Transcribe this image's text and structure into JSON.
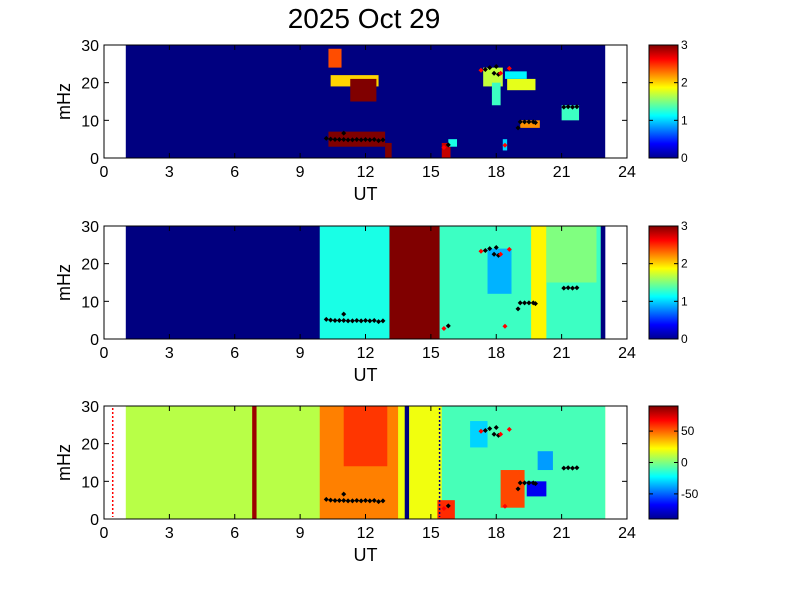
{
  "chart_data": {
    "title": "2025 Oct 29",
    "type": "heatmap",
    "panels": [
      {
        "id": "top",
        "xlabel": "UT",
        "ylabel": "mHz",
        "xlim": [
          0,
          24
        ],
        "ylim": [
          0,
          30
        ],
        "xticks": [
          0,
          3,
          6,
          9,
          12,
          15,
          18,
          21,
          24
        ],
        "yticks": [
          0,
          10,
          20,
          30
        ],
        "colorbar": {
          "range": [
            0,
            3
          ],
          "ticks": [
            0,
            1,
            2,
            3
          ]
        },
        "background_value": 0,
        "data_extent_hours": [
          1,
          23
        ],
        "patches": [
          {
            "x0": 10.3,
            "x1": 10.9,
            "y0": 24,
            "y1": 29,
            "v": 2.4
          },
          {
            "x0": 10.4,
            "x1": 12.6,
            "y0": 19,
            "y1": 22,
            "v": 2.0
          },
          {
            "x0": 11.3,
            "x1": 12.5,
            "y0": 15,
            "y1": 21,
            "v": 3.0
          },
          {
            "x0": 10.3,
            "x1": 12.9,
            "y0": 3,
            "y1": 7,
            "v": 3.0
          },
          {
            "x0": 12.9,
            "x1": 13.2,
            "y0": 0,
            "y1": 4,
            "v": 3.0
          },
          {
            "x0": 15.5,
            "x1": 15.9,
            "y0": 0,
            "y1": 4,
            "v": 2.8
          },
          {
            "x0": 15.8,
            "x1": 16.2,
            "y0": 3,
            "y1": 5,
            "v": 1.2
          },
          {
            "x0": 17.4,
            "x1": 18.3,
            "y0": 19,
            "y1": 24,
            "v": 1.7
          },
          {
            "x0": 17.8,
            "x1": 18.2,
            "y0": 14,
            "y1": 20,
            "v": 1.3
          },
          {
            "x0": 18.5,
            "x1": 19.8,
            "y0": 18,
            "y1": 21,
            "v": 1.8
          },
          {
            "x0": 18.4,
            "x1": 19.4,
            "y0": 21,
            "y1": 23,
            "v": 1.1
          },
          {
            "x0": 19.1,
            "x1": 20.0,
            "y0": 8,
            "y1": 10,
            "v": 2.2
          },
          {
            "x0": 21.0,
            "x1": 21.8,
            "y0": 10,
            "y1": 14,
            "v": 1.3
          },
          {
            "x0": 18.3,
            "x1": 18.5,
            "y0": 2,
            "y1": 5,
            "v": 1.0
          }
        ]
      },
      {
        "id": "middle",
        "xlabel": "UT",
        "ylabel": "mHz",
        "xlim": [
          0,
          24
        ],
        "ylim": [
          0,
          30
        ],
        "xticks": [
          0,
          3,
          6,
          9,
          12,
          15,
          18,
          21,
          24
        ],
        "yticks": [
          0,
          10,
          20,
          30
        ],
        "colorbar": {
          "range": [
            0,
            3
          ],
          "ticks": [
            0,
            1,
            2,
            3
          ]
        },
        "background_value": 0,
        "data_extent_hours": [
          1,
          23
        ],
        "patches": [
          {
            "x0": 9.9,
            "x1": 13.1,
            "y0": 0,
            "y1": 30,
            "v": 1.2
          },
          {
            "x0": 13.1,
            "x1": 15.4,
            "y0": 0,
            "y1": 30,
            "v": 3.0
          },
          {
            "x0": 15.4,
            "x1": 22.8,
            "y0": 0,
            "y1": 30,
            "v": 1.3
          },
          {
            "x0": 17.6,
            "x1": 18.7,
            "y0": 12,
            "y1": 24,
            "v": 0.9
          },
          {
            "x0": 19.6,
            "x1": 20.3,
            "y0": 0,
            "y1": 30,
            "v": 1.9
          },
          {
            "x0": 20.3,
            "x1": 22.6,
            "y0": 15,
            "y1": 30,
            "v": 1.5
          },
          {
            "x0": 22.8,
            "x1": 23.0,
            "y0": 0,
            "y1": 30,
            "v": 0.0
          }
        ]
      },
      {
        "id": "bottom",
        "xlabel": "UT",
        "ylabel": "mHz",
        "xlim": [
          0,
          24
        ],
        "ylim": [
          0,
          30
        ],
        "xticks": [
          0,
          3,
          6,
          9,
          12,
          15,
          18,
          21,
          24
        ],
        "yticks": [
          0,
          10,
          20,
          30
        ],
        "colorbar": {
          "range": [
            -90,
            90
          ],
          "ticks": [
            50,
            0,
            -50
          ]
        },
        "background_value": 10,
        "data_extent_hours": [
          1,
          23
        ],
        "patches": [
          {
            "x0": 9.9,
            "x1": 13.5,
            "y0": 0,
            "y1": 30,
            "v": 45
          },
          {
            "x0": 11.0,
            "x1": 13.0,
            "y0": 14,
            "y1": 30,
            "v": 58
          },
          {
            "x0": 13.5,
            "x1": 15.5,
            "y0": 0,
            "y1": 30,
            "v": 20
          },
          {
            "x0": 15.5,
            "x1": 23.0,
            "y0": 0,
            "y1": 30,
            "v": -10
          },
          {
            "x0": 18.2,
            "x1": 19.3,
            "y0": 3,
            "y1": 13,
            "v": 55
          },
          {
            "x0": 19.4,
            "x1": 20.3,
            "y0": 6,
            "y1": 10,
            "v": -70
          },
          {
            "x0": 19.9,
            "x1": 20.6,
            "y0": 13,
            "y1": 18,
            "v": -40
          },
          {
            "x0": 16.8,
            "x1": 17.6,
            "y0": 19,
            "y1": 26,
            "v": -30
          },
          {
            "x0": 15.3,
            "x1": 16.1,
            "y0": 0,
            "y1": 5,
            "v": 60
          },
          {
            "x0": 6.8,
            "x1": 7.0,
            "y0": 0,
            "y1": 30,
            "v": 85
          },
          {
            "x0": 13.8,
            "x1": 14.0,
            "y0": 0,
            "y1": 30,
            "v": -90
          }
        ],
        "dashed_lines": [
          {
            "x": 0.4,
            "color": "#ff0000"
          },
          {
            "x": 15.4,
            "color": "#000080"
          }
        ]
      }
    ],
    "markers_black": [
      [
        10.2,
        5.2
      ],
      [
        10.4,
        5.0
      ],
      [
        10.6,
        4.9
      ],
      [
        10.8,
        4.9
      ],
      [
        11.0,
        6.6
      ],
      [
        11.0,
        4.9
      ],
      [
        11.2,
        4.8
      ],
      [
        11.4,
        4.8
      ],
      [
        11.6,
        4.9
      ],
      [
        11.8,
        4.8
      ],
      [
        12.0,
        4.9
      ],
      [
        12.2,
        4.8
      ],
      [
        12.4,
        4.9
      ],
      [
        12.6,
        4.6
      ],
      [
        12.8,
        4.8
      ],
      [
        15.8,
        3.5
      ],
      [
        17.5,
        23.5
      ],
      [
        17.7,
        24.0
      ],
      [
        17.9,
        22.5
      ],
      [
        18.1,
        22.2
      ],
      [
        18.0,
        24.3
      ],
      [
        19.0,
        8.0
      ],
      [
        19.1,
        9.6
      ],
      [
        19.3,
        9.6
      ],
      [
        19.5,
        9.6
      ],
      [
        19.7,
        9.6
      ],
      [
        19.8,
        9.4
      ],
      [
        21.1,
        13.5
      ],
      [
        21.3,
        13.6
      ],
      [
        21.5,
        13.5
      ],
      [
        21.7,
        13.6
      ]
    ],
    "markers_red": [
      [
        15.6,
        2.8
      ],
      [
        17.3,
        23.3
      ],
      [
        18.2,
        22.5
      ],
      [
        18.4,
        3.4
      ],
      [
        18.6,
        23.8
      ]
    ]
  }
}
